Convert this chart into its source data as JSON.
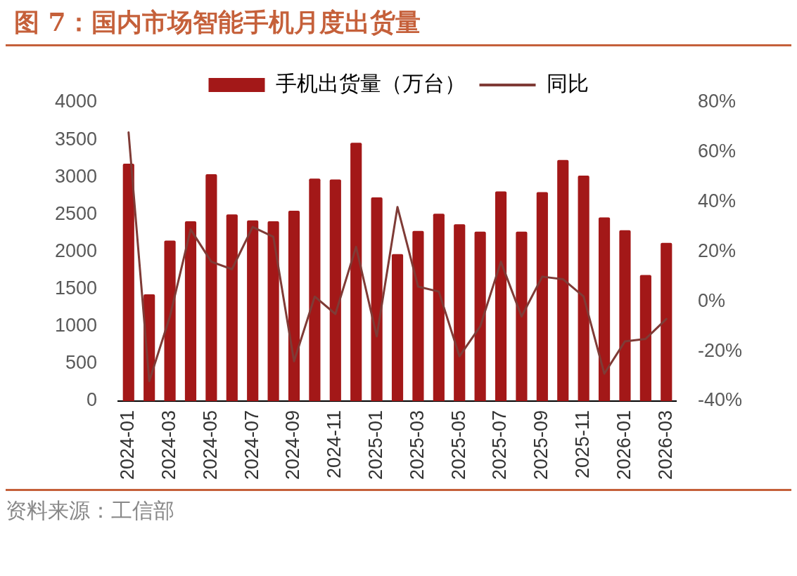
{
  "chart_data": {
    "type": "bar",
    "title": "图 7：国内市场智能手机月度出货量",
    "annotations": [
      "资料来源：工信部"
    ],
    "categories": [
      "2024-01",
      null,
      "2024-03",
      null,
      "2024-05",
      null,
      "2024-07",
      null,
      "2024-09",
      null,
      "2024-11",
      null,
      "2025-01",
      null,
      "2025-03",
      null,
      "2025-05",
      null,
      "2025-07",
      null,
      "2025-09",
      null,
      "2025-11",
      null,
      "2026-01",
      null,
      "2026-03"
    ],
    "series": [
      {
        "name": "手机出货量（万台）",
        "color": "#a31818",
        "values": [
          3180,
          1430,
          2150,
          2410,
          3040,
          2500,
          2420,
          2410,
          2550,
          2980,
          2970,
          3460,
          2730,
          1970,
          2280,
          2510,
          2370,
          2270,
          2810,
          2270,
          2800,
          3230,
          3020,
          2460,
          2290,
          1690,
          2120
        ]
      },
      {
        "name": "同比",
        "type": "line",
        "axis": "y2",
        "color": "#7f3b36",
        "values": [
          68,
          -32,
          -6,
          29,
          16,
          13,
          30,
          26,
          -24,
          2,
          -5,
          22,
          -14,
          38,
          6,
          4,
          -22,
          -10,
          16,
          -6,
          10,
          9,
          2,
          -29,
          -16,
          -15,
          -7
        ]
      }
    ],
    "ylim": [
      0,
      4000
    ],
    "yticks": [
      0,
      500,
      1000,
      1500,
      2000,
      2500,
      3000,
      3500,
      4000
    ],
    "y2lim": [
      -40,
      80
    ],
    "y2ticks": [
      {
        "value": -40,
        "label": "-40%"
      },
      {
        "value": -20,
        "label": "-20%"
      },
      {
        "value": 0,
        "label": "0%"
      },
      {
        "value": 20,
        "label": "20%"
      },
      {
        "value": 40,
        "label": "40%"
      },
      {
        "value": 60,
        "label": "60%"
      },
      {
        "value": 80,
        "label": "80%"
      }
    ],
    "grid": false,
    "legend": "top",
    "marker": "none",
    "line_style": "solid"
  }
}
